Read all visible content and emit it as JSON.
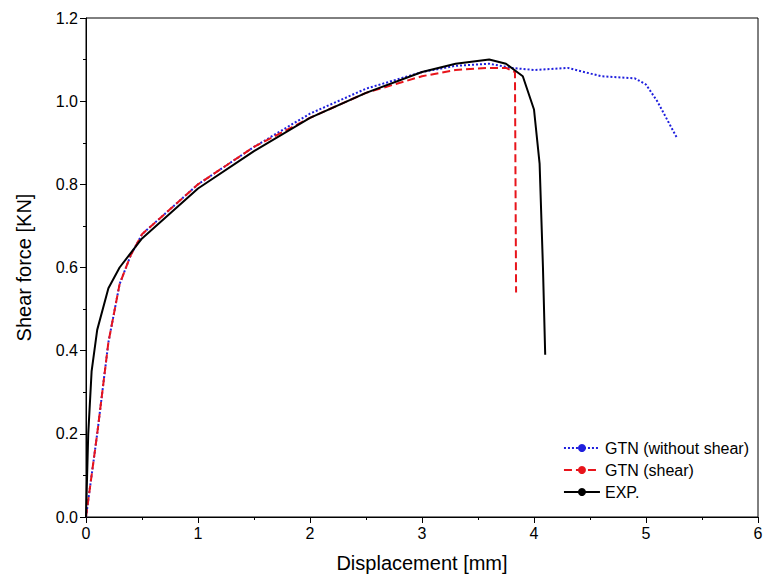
{
  "chart_data": {
    "type": "line",
    "x_label": "Displacement [mm]",
    "y_label": "Shear force [KN]",
    "xlim": [
      0,
      6
    ],
    "xticks": [
      0,
      1,
      2,
      3,
      4,
      5,
      6
    ],
    "ylim": [
      0,
      1.2
    ],
    "yticks": [
      {
        "value": 0,
        "label": "0.0"
      },
      0.2,
      0.4,
      0.6,
      0.8,
      {
        "value": 1,
        "label": "1.0"
      },
      1.2
    ],
    "grid": false,
    "legend": "bottom-right",
    "series": [
      {
        "name": "GTN (without shear)",
        "color": "#1f1fdd",
        "line_style": "dotted",
        "x": [
          0,
          0.05,
          0.1,
          0.2,
          0.3,
          0.4,
          0.5,
          0.75,
          1,
          1.5,
          2,
          2.5,
          3,
          3.3,
          3.6,
          3.8,
          4,
          4.3,
          4.6,
          4.9,
          5.0,
          5.1,
          5.2,
          5.28
        ],
        "values": [
          0,
          0.1,
          0.2,
          0.42,
          0.56,
          0.63,
          0.68,
          0.74,
          0.8,
          0.89,
          0.97,
          1.03,
          1.07,
          1.085,
          1.09,
          1.08,
          1.075,
          1.08,
          1.06,
          1.055,
          1.04,
          1.0,
          0.95,
          0.91
        ]
      },
      {
        "name": "GTN (shear)",
        "color": "#e8141b",
        "line_style": "dashed",
        "x": [
          0,
          0.05,
          0.1,
          0.2,
          0.3,
          0.4,
          0.5,
          0.75,
          1,
          1.5,
          2,
          2.5,
          3,
          3.3,
          3.6,
          3.75,
          3.83,
          3.84
        ],
        "values": [
          0,
          0.1,
          0.2,
          0.42,
          0.56,
          0.63,
          0.68,
          0.74,
          0.8,
          0.89,
          0.96,
          1.02,
          1.06,
          1.075,
          1.08,
          1.08,
          1.07,
          0.54
        ]
      },
      {
        "name": "EXP.",
        "color": "#000000",
        "line_style": "solid",
        "x": [
          0,
          0.02,
          0.05,
          0.1,
          0.2,
          0.3,
          0.5,
          0.75,
          1,
          1.5,
          2,
          2.5,
          3,
          3.3,
          3.6,
          3.75,
          3.9,
          4.0,
          4.05,
          4.08,
          4.1
        ],
        "values": [
          0,
          0.2,
          0.35,
          0.45,
          0.55,
          0.6,
          0.67,
          0.73,
          0.79,
          0.88,
          0.96,
          1.02,
          1.07,
          1.09,
          1.1,
          1.09,
          1.06,
          0.98,
          0.85,
          0.6,
          0.39
        ]
      }
    ]
  }
}
